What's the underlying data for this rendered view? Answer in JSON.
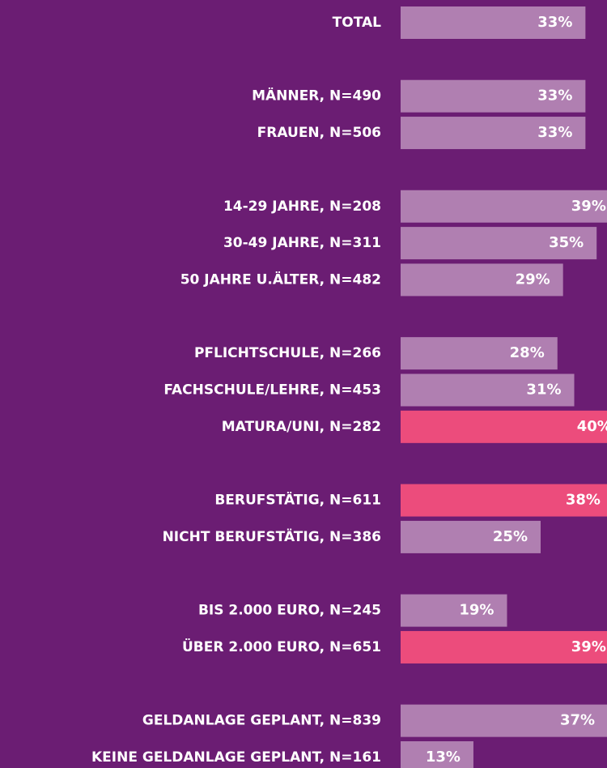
{
  "chart_data": {
    "type": "hbar",
    "categories": [
      "TOTAL",
      null,
      "MÄNNER, N=490",
      "FRAUEN, N=506",
      null,
      "14-29 JAHRE, N=208",
      "30-49 JAHRE, N=311",
      "50 JAHRE U.ÄLTER, N=482",
      null,
      "PFLICHTSCHULE, N=266",
      "FACHSCHULE/LEHRE, N=453",
      "MATURA/UNI, N=282",
      null,
      "BERUFSTÄTIG, N=611",
      "NICHT BERUFSTÄTIG, N=386",
      null,
      "BIS 2.000 EURO, N=245",
      "ÜBER 2.000 EURO, N=651",
      null,
      "GELDANLAGE GEPLANT, N=839",
      "KEINE GELDANLAGE GEPLANT, N=161"
    ],
    "values": [
      33,
      null,
      33,
      33,
      null,
      39,
      35,
      29,
      null,
      28,
      31,
      40,
      null,
      38,
      25,
      null,
      19,
      39,
      null,
      37,
      13
    ],
    "value_labels": [
      "33%",
      null,
      "33%",
      "33%",
      null,
      "39%",
      "35%",
      "29%",
      null,
      "28%",
      "31%",
      "40%",
      null,
      "38%",
      "25%",
      null,
      "19%",
      "39%",
      null,
      "37%",
      "13%"
    ],
    "colors": [
      "#b07fb1",
      null,
      "#b07fb1",
      "#b07fb1",
      null,
      "#b07fb1",
      "#b07fb1",
      "#b07fb1",
      null,
      "#b07fb1",
      "#b07fb1",
      "#ec4c7c",
      null,
      "#ec4c7c",
      "#b07fb1",
      null,
      "#b07fb1",
      "#ec4c7c",
      null,
      "#b07fb1",
      "#b07fb1"
    ]
  }
}
